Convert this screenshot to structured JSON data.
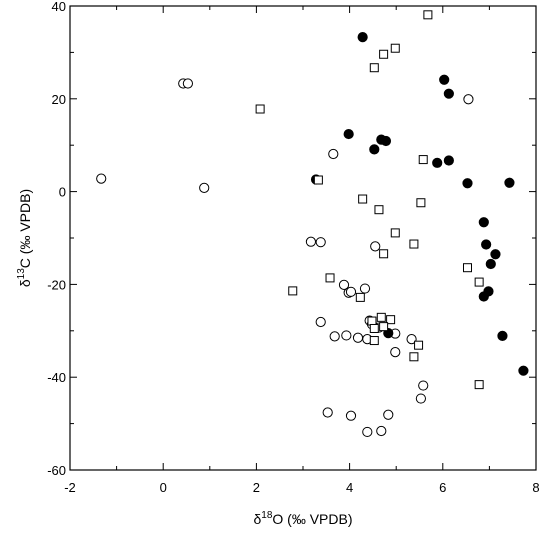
{
  "chart_data": {
    "type": "scatter",
    "title": "",
    "xlabel": {
      "delta": "δ",
      "sup": "18",
      "rest": "O (‰ VPDB)"
    },
    "ylabel": {
      "delta": "δ",
      "sup": "13",
      "rest": "C (‰ VPDB)"
    },
    "xlim": [
      -2,
      8
    ],
    "ylim": [
      -60,
      40
    ],
    "xticks": [
      "-2",
      "0",
      "2",
      "4",
      "6",
      "8"
    ],
    "yticks": [
      "-60",
      "-40",
      "-20",
      "0",
      "20",
      "40"
    ],
    "grid": false,
    "legend": "none",
    "series": [
      {
        "marker": "circle-open",
        "color": "#000000",
        "points": [
          [
            -1.33,
            2.8
          ],
          [
            0.43,
            23.3
          ],
          [
            0.53,
            23.3
          ],
          [
            0.88,
            0.8
          ],
          [
            3.65,
            8.1
          ],
          [
            6.55,
            19.9
          ],
          [
            3.17,
            -10.8
          ],
          [
            3.38,
            -10.9
          ],
          [
            4.55,
            -11.8
          ],
          [
            3.88,
            -20.1
          ],
          [
            3.98,
            -21.8
          ],
          [
            4.03,
            -21.6
          ],
          [
            4.33,
            -20.9
          ],
          [
            3.38,
            -28.1
          ],
          [
            3.68,
            -31.2
          ],
          [
            3.93,
            -31.0
          ],
          [
            4.18,
            -31.5
          ],
          [
            4.38,
            -31.8
          ],
          [
            4.43,
            -27.8
          ],
          [
            4.48,
            -28.6
          ],
          [
            4.63,
            -29.3
          ],
          [
            4.98,
            -30.6
          ],
          [
            5.33,
            -31.8
          ],
          [
            4.98,
            -34.6
          ],
          [
            5.58,
            -41.8
          ],
          [
            5.53,
            -44.6
          ],
          [
            3.53,
            -47.6
          ],
          [
            4.03,
            -48.3
          ],
          [
            4.83,
            -48.1
          ],
          [
            4.38,
            -51.8
          ],
          [
            4.68,
            -51.6
          ]
        ]
      },
      {
        "marker": "circle-filled",
        "color": "#000000",
        "points": [
          [
            4.28,
            33.3
          ],
          [
            6.03,
            24.1
          ],
          [
            6.13,
            21.1
          ],
          [
            3.98,
            12.4
          ],
          [
            4.68,
            11.2
          ],
          [
            4.78,
            10.9
          ],
          [
            4.53,
            9.1
          ],
          [
            5.88,
            6.2
          ],
          [
            6.13,
            6.7
          ],
          [
            3.28,
            2.6
          ],
          [
            6.53,
            1.8
          ],
          [
            7.43,
            1.9
          ],
          [
            6.88,
            -6.6
          ],
          [
            6.93,
            -11.4
          ],
          [
            7.13,
            -13.5
          ],
          [
            7.03,
            -15.6
          ],
          [
            6.98,
            -21.5
          ],
          [
            6.88,
            -22.6
          ],
          [
            4.83,
            -30.5
          ],
          [
            7.28,
            -31.1
          ],
          [
            7.73,
            -38.6
          ]
        ]
      },
      {
        "marker": "square-open",
        "color": "#000000",
        "points": [
          [
            5.68,
            38.1
          ],
          [
            4.98,
            30.9
          ],
          [
            4.73,
            29.6
          ],
          [
            4.53,
            26.7
          ],
          [
            2.08,
            17.8
          ],
          [
            5.58,
            6.9
          ],
          [
            3.33,
            2.5
          ],
          [
            4.28,
            -1.6
          ],
          [
            5.53,
            -2.4
          ],
          [
            4.63,
            -3.9
          ],
          [
            4.98,
            -8.9
          ],
          [
            5.38,
            -11.3
          ],
          [
            4.73,
            -13.4
          ],
          [
            6.53,
            -16.4
          ],
          [
            3.58,
            -18.6
          ],
          [
            6.78,
            -19.5
          ],
          [
            2.78,
            -21.4
          ],
          [
            4.23,
            -22.8
          ],
          [
            4.48,
            -27.9
          ],
          [
            4.68,
            -27.1
          ],
          [
            4.88,
            -27.6
          ],
          [
            4.73,
            -29.1
          ],
          [
            4.53,
            -29.5
          ],
          [
            4.53,
            -32.1
          ],
          [
            5.48,
            -33.1
          ],
          [
            5.38,
            -35.6
          ],
          [
            6.78,
            -41.6
          ]
        ]
      }
    ]
  }
}
